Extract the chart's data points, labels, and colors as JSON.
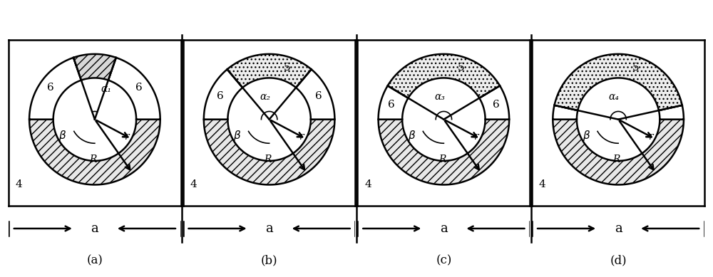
{
  "panels": [
    {
      "label": "(a)",
      "alpha_label": "α₁",
      "alpha_deg": 38,
      "has_top_label": false,
      "side_label": "6",
      "top_label": null
    },
    {
      "label": "(b)",
      "alpha_label": "α₂",
      "alpha_deg": 80,
      "has_top_label": true,
      "side_label": "6",
      "top_label": "5"
    },
    {
      "label": "(c)",
      "alpha_label": "α₃",
      "alpha_deg": 118,
      "has_top_label": true,
      "side_label": "6",
      "top_label": "5"
    },
    {
      "label": "(d)",
      "alpha_label": "α₄",
      "alpha_deg": 155,
      "has_top_label": true,
      "side_label": null,
      "top_label": "5"
    }
  ],
  "R": 0.82,
  "r_inner": 0.52,
  "lw": 1.8,
  "fig_w": 10.0,
  "fig_h": 3.89
}
